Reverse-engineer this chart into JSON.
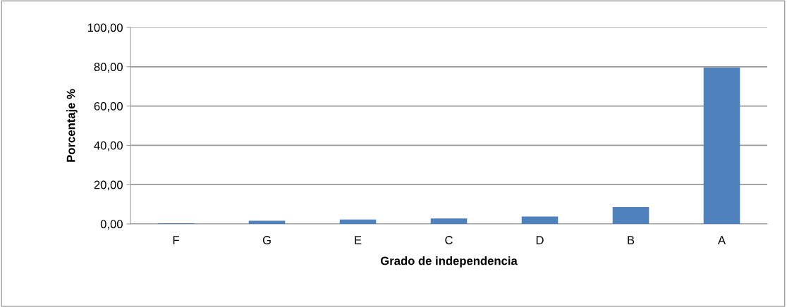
{
  "chart_data": {
    "type": "bar",
    "xlabel": "Grado de independencia",
    "ylabel": "Porcentaje %",
    "categories": [
      "F",
      "G",
      "E",
      "C",
      "D",
      "B",
      "A"
    ],
    "values": [
      0.4,
      1.6,
      2.2,
      2.8,
      3.8,
      8.6,
      79.6
    ],
    "color": "#4f81bd",
    "ylim": [
      0,
      100
    ],
    "yticks": [
      {
        "value": 0,
        "label": "0,00"
      },
      {
        "value": 20,
        "label": "20,00"
      },
      {
        "value": 40,
        "label": "40,00"
      },
      {
        "value": 60,
        "label": "60,00"
      },
      {
        "value": 80,
        "label": "80,00"
      },
      {
        "value": 100,
        "label": "100,00"
      }
    ],
    "grid": "y"
  }
}
